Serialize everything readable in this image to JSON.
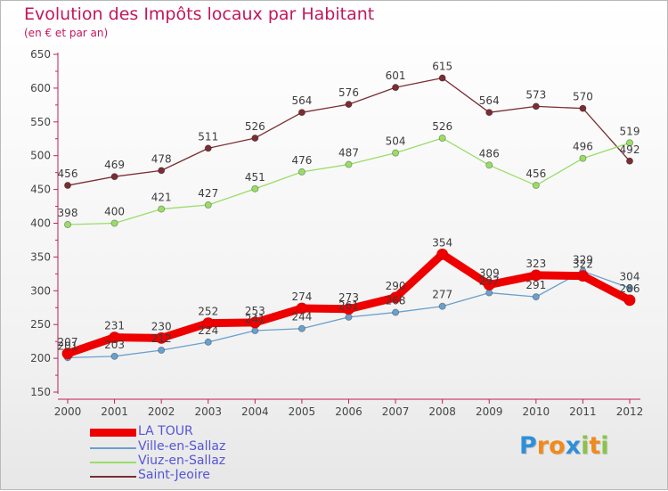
{
  "chart_data": {
    "type": "line",
    "title": "Evolution des Impôts locaux par Habitant",
    "subtitle": "(en € et par an)",
    "xlabel": "",
    "ylabel": "",
    "x": [
      "2000",
      "2001",
      "2002",
      "2003",
      "2004",
      "2005",
      "2006",
      "2007",
      "2008",
      "2009",
      "2010",
      "2011",
      "2012"
    ],
    "ylim": [
      150,
      650
    ],
    "yticks": [
      150,
      200,
      250,
      300,
      350,
      400,
      450,
      500,
      550,
      600,
      650
    ],
    "grid": false,
    "legend_position": "bottom-left",
    "series": [
      {
        "name": "LA TOUR",
        "color": "#ee0000",
        "values": [
          207,
          231,
          230,
          252,
          253,
          274,
          273,
          290,
          354,
          309,
          323,
          322,
          286
        ]
      },
      {
        "name": "Ville-en-Sallaz",
        "color": "#6aa0cc",
        "values": [
          201,
          203,
          212,
          224,
          241,
          244,
          261,
          268,
          277,
          297,
          291,
          329,
          304
        ]
      },
      {
        "name": "Viuz-en-Sallaz",
        "color": "#99dd66",
        "values": [
          398,
          400,
          421,
          427,
          451,
          476,
          487,
          504,
          526,
          486,
          456,
          496,
          519
        ]
      },
      {
        "name": "Saint-Jeoire",
        "color": "#7a2e33",
        "values": [
          456,
          469,
          478,
          511,
          526,
          564,
          576,
          601,
          615,
          564,
          573,
          570,
          492
        ]
      }
    ]
  },
  "brand": {
    "letters": [
      {
        "ch": "P",
        "color": "#2f8fd8"
      },
      {
        "ch": "r",
        "color": "#f08a1c"
      },
      {
        "ch": "o",
        "color": "#f08a1c"
      },
      {
        "ch": "x",
        "color": "#2f8fd8"
      },
      {
        "ch": "i",
        "color": "#8bc34a"
      },
      {
        "ch": "t",
        "color": "#f08a1c"
      },
      {
        "ch": "i",
        "color": "#8bc34a"
      }
    ]
  }
}
